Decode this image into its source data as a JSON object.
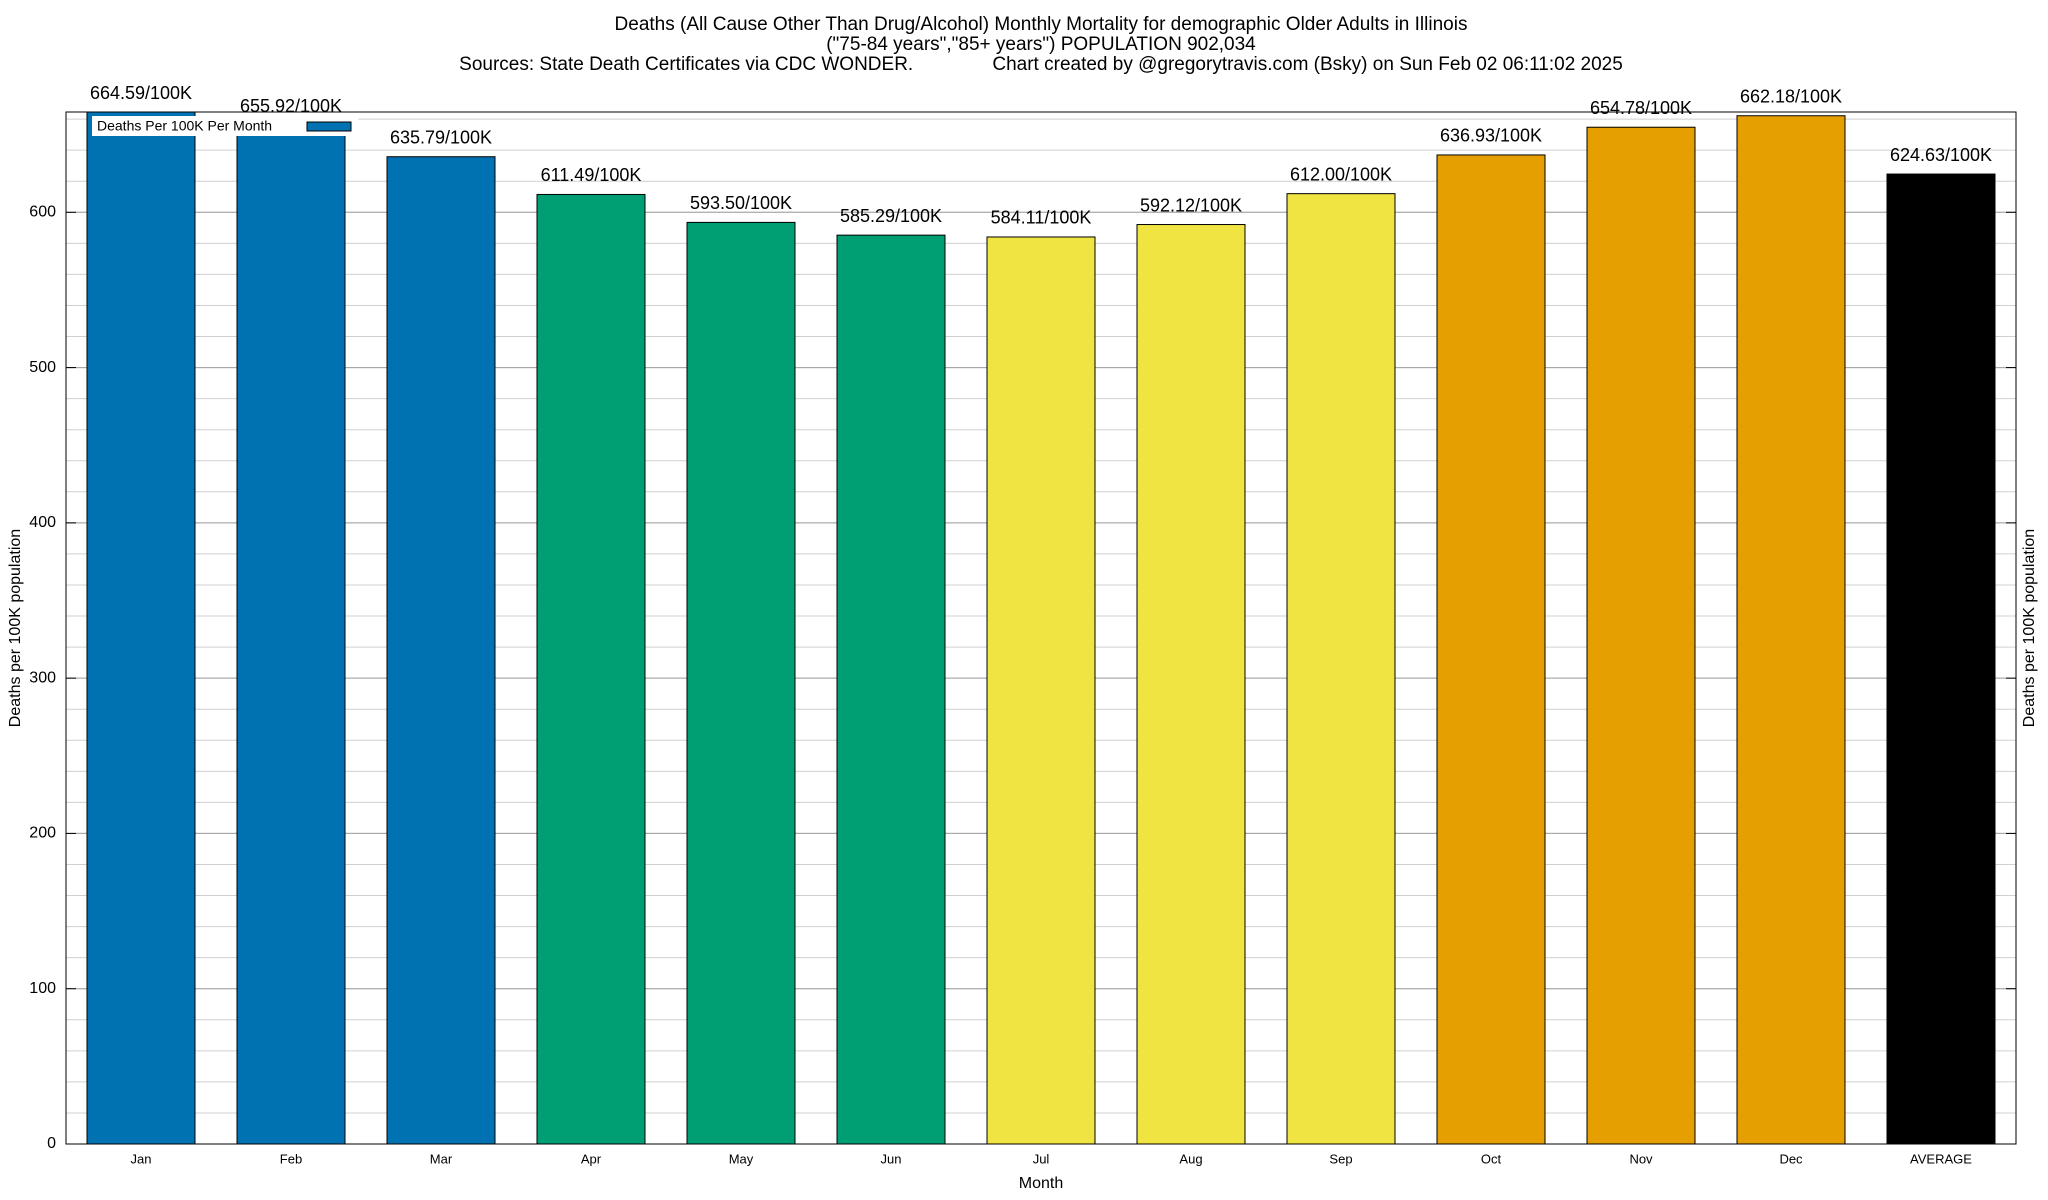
{
  "chart_data": {
    "type": "bar",
    "title": "Deaths (All Cause Other Than Drug/Alcohol) Monthly Mortality for demographic Older Adults in Illinois",
    "subtitle": "(\"75-84 years\",\"85+ years\") POPULATION 902,034",
    "source": "Sources: State Death Certificates via CDC WONDER.               Chart created by @gregorytravis.com (Bsky) on Sun Feb 02 06:11:02 2025",
    "xlabel": "Month",
    "ylabel": "Deaths per 100K population",
    "y2label": "Deaths per 100K population",
    "categories": [
      "Jan",
      "Feb",
      "Mar",
      "Apr",
      "May",
      "Jun",
      "Jul",
      "Aug",
      "Sep",
      "Oct",
      "Nov",
      "Dec",
      "AVERAGE"
    ],
    "series": [
      {
        "name": "Deaths Per 100K Per Month",
        "color": "#0072b2",
        "values": [
          664.59,
          655.92,
          635.79,
          611.49,
          593.5,
          585.29,
          584.11,
          592.12,
          612.0,
          636.93,
          654.78,
          662.18,
          624.63
        ],
        "value_labels": [
          "664.59/100K",
          "655.92/100K",
          "635.79/100K",
          "611.49/100K",
          "593.50/100K",
          "585.29/100K",
          "584.11/100K",
          "592.12/100K",
          "612.00/100K",
          "636.93/100K",
          "654.78/100K",
          "662.18/100K",
          "624.63/100K"
        ],
        "colors": [
          "#0072b2",
          "#0072b2",
          "#0072b2",
          "#009e73",
          "#009e73",
          "#009e73",
          "#f0e442",
          "#f0e442",
          "#f0e442",
          "#e69f00",
          "#e69f00",
          "#e69f00",
          "#000000"
        ]
      }
    ],
    "ylim": [
      0,
      664.59
    ],
    "yticks": [
      0,
      100,
      200,
      300,
      400,
      500,
      600
    ],
    "minor_ytick_step": 20,
    "grid": true,
    "legend": "top-left"
  }
}
